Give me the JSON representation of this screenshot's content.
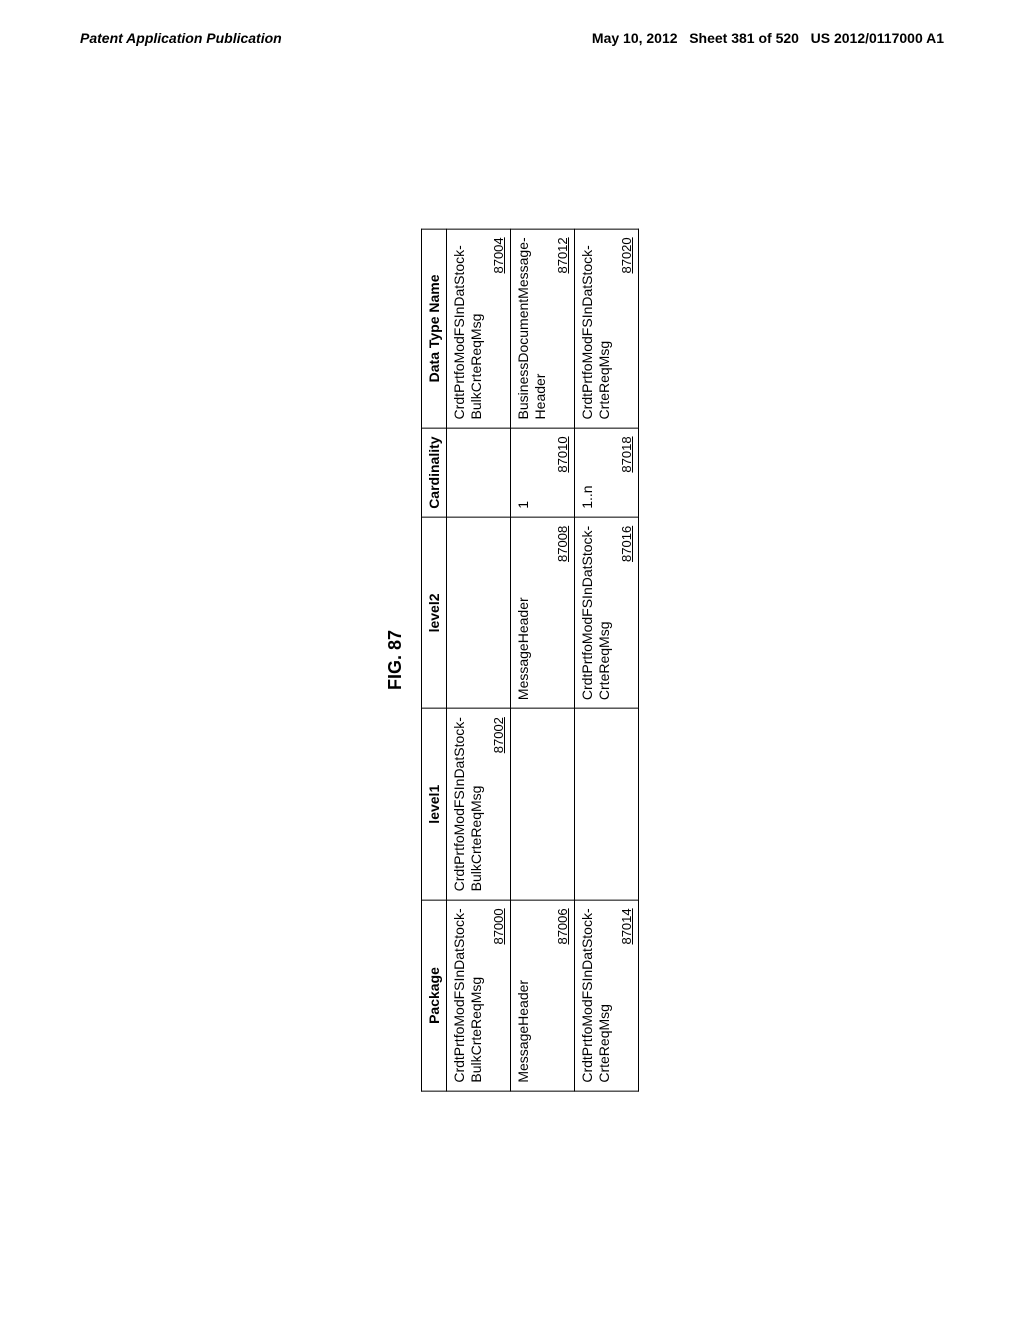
{
  "header": {
    "left": "Patent Application Publication",
    "date": "May 10, 2012",
    "sheet": "Sheet 381 of 520",
    "docnum": "US 2012/0117000 A1"
  },
  "figure": {
    "title": "FIG. 87"
  },
  "table": {
    "columns": [
      "Package",
      "level1",
      "level2",
      "Cardinality",
      "Data Type Name"
    ],
    "rows": [
      {
        "package": {
          "text": "CrdtPrtfoModFSInDatStock-BulkCrteReqMsg",
          "ref": "87000"
        },
        "level1": {
          "text": "CrdtPrtfoModFSInDatStock-BulkCrteReqMsg",
          "ref": "87002"
        },
        "level2": {
          "text": "",
          "ref": ""
        },
        "cardinality": {
          "text": "",
          "ref": ""
        },
        "datatype": {
          "text": "CrdtPrtfoModFSInDatStock-BulkCrteReqMsg",
          "ref": "87004"
        }
      },
      {
        "package": {
          "text": "MessageHeader",
          "ref": "87006"
        },
        "level1": {
          "text": "",
          "ref": ""
        },
        "level2": {
          "text": "MessageHeader",
          "ref": "87008"
        },
        "cardinality": {
          "text": "1",
          "ref": "87010"
        },
        "datatype": {
          "text": "BusinessDocumentMessage-Header",
          "ref": "87012"
        }
      },
      {
        "package": {
          "text": "CrdtPrtfoModFSInDatStock-CrteReqMsg",
          "ref": "87014"
        },
        "level1": {
          "text": "",
          "ref": ""
        },
        "level2": {
          "text": "CrdtPrtfoModFSInDatStock-CrteReqMsg",
          "ref": "87016"
        },
        "cardinality": {
          "text": "1..n",
          "ref": "87018"
        },
        "datatype": {
          "text": "CrdtPrtfoModFSInDatStock-CrteReqMsg",
          "ref": "87020"
        }
      }
    ]
  }
}
